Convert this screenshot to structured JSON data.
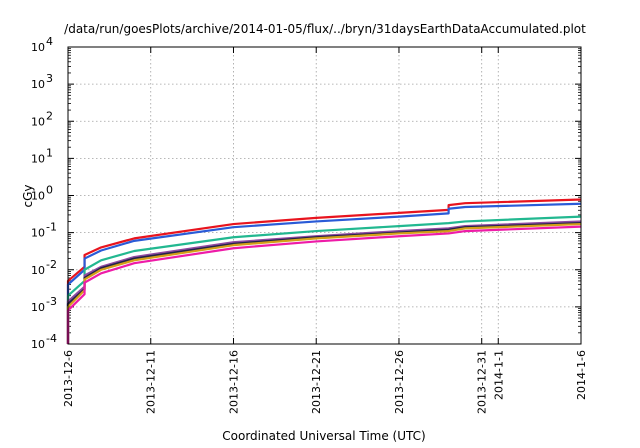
{
  "chart_data": {
    "type": "line",
    "title": "/data/run/goesPlots/archive/2014-01-05/flux/../bryn/31daysEarthDataAccumulated.plot",
    "xlabel": "Coordinated Universal Time (UTC)",
    "ylabel": "cGy",
    "y_scale": "log",
    "ylim": [
      0.0001,
      10000
    ],
    "xlim": [
      "2013-12-06",
      "2014-01-06"
    ],
    "grid": true,
    "legend": "none",
    "y_ticks": [
      {
        "base": "10",
        "exp": "-4",
        "value": 0.0001
      },
      {
        "base": "10",
        "exp": "-3",
        "value": 0.001
      },
      {
        "base": "10",
        "exp": "-2",
        "value": 0.01
      },
      {
        "base": "10",
        "exp": "-1",
        "value": 0.1
      },
      {
        "base": "10",
        "exp": "0",
        "value": 1
      },
      {
        "base": "10",
        "exp": "1",
        "value": 10
      },
      {
        "base": "10",
        "exp": "2",
        "value": 100
      },
      {
        "base": "10",
        "exp": "3",
        "value": 1000
      },
      {
        "base": "10",
        "exp": "4",
        "value": 10000
      }
    ],
    "x_ticks": [
      {
        "date": "2013-12-06",
        "label": "2013-12-6"
      },
      {
        "date": "2013-12-11",
        "label": "2013-12-11"
      },
      {
        "date": "2013-12-16",
        "label": "2013-12-16"
      },
      {
        "date": "2013-12-21",
        "label": "2013-12-21"
      },
      {
        "date": "2013-12-26",
        "label": "2013-12-26"
      },
      {
        "date": "2013-12-31",
        "label": "2013-12-31"
      },
      {
        "date": "2014-01-01",
        "label": "2014-1-1"
      },
      {
        "date": "2014-01-06",
        "label": "2014-1-6"
      }
    ],
    "series": [
      {
        "color": "#e8141e",
        "x": [
          "2013-12-06",
          "2013-12-06",
          "2013-12-06",
          "2013-12-07",
          "2013-12-07",
          "2013-12-08",
          "2013-12-10",
          "2013-12-16",
          "2013-12-21",
          "2013-12-26",
          "2013-12-29",
          "2013-12-29",
          "2013-12-30",
          "2014-01-06"
        ],
        "values": [
          0.0001,
          0.0015,
          0.005,
          0.012,
          0.025,
          0.04,
          0.07,
          0.17,
          0.25,
          0.34,
          0.41,
          0.55,
          0.62,
          0.78
        ]
      },
      {
        "color": "#2a5bd7",
        "x": [
          "2013-12-06",
          "2013-12-06",
          "2013-12-06",
          "2013-12-07",
          "2013-12-07",
          "2013-12-08",
          "2013-12-10",
          "2013-12-16",
          "2013-12-21",
          "2013-12-26",
          "2013-12-29",
          "2013-12-29",
          "2013-12-30",
          "2014-01-06"
        ],
        "values": [
          0.0001,
          0.0012,
          0.004,
          0.01,
          0.02,
          0.033,
          0.06,
          0.14,
          0.2,
          0.27,
          0.33,
          0.44,
          0.49,
          0.6
        ]
      },
      {
        "color": "#22b890",
        "x": [
          "2013-12-06",
          "2013-12-06",
          "2013-12-06",
          "2013-12-07",
          "2013-12-07",
          "2013-12-08",
          "2013-12-10",
          "2013-12-16",
          "2013-12-21",
          "2013-12-26",
          "2013-12-29",
          "2013-12-30",
          "2014-01-06"
        ],
        "values": [
          0.0001,
          0.0006,
          0.002,
          0.005,
          0.01,
          0.018,
          0.032,
          0.075,
          0.11,
          0.15,
          0.18,
          0.2,
          0.27
        ]
      },
      {
        "color": "#8e4aa0",
        "x": [
          "2013-12-06",
          "2013-12-06",
          "2013-12-06",
          "2013-12-07",
          "2013-12-07",
          "2013-12-08",
          "2013-12-10",
          "2013-12-16",
          "2013-12-21",
          "2013-12-26",
          "2013-12-29",
          "2013-12-30",
          "2014-01-06"
        ],
        "values": [
          0.0001,
          0.0004,
          0.0014,
          0.0035,
          0.007,
          0.012,
          0.022,
          0.055,
          0.08,
          0.11,
          0.13,
          0.15,
          0.2
        ]
      },
      {
        "color": "#23234a",
        "x": [
          "2013-12-06",
          "2013-12-06",
          "2013-12-06",
          "2013-12-07",
          "2013-12-07",
          "2013-12-08",
          "2013-12-10",
          "2013-12-16",
          "2013-12-21",
          "2013-12-26",
          "2013-12-29",
          "2013-12-30",
          "2014-01-06"
        ],
        "values": [
          0.0001,
          0.00035,
          0.0012,
          0.003,
          0.006,
          0.011,
          0.02,
          0.05,
          0.075,
          0.1,
          0.12,
          0.14,
          0.18
        ]
      },
      {
        "color": "#d4a017",
        "x": [
          "2013-12-06",
          "2013-12-06",
          "2013-12-06",
          "2013-12-07",
          "2013-12-07",
          "2013-12-08",
          "2013-12-10",
          "2013-12-16",
          "2013-12-21",
          "2013-12-26",
          "2013-12-29",
          "2013-12-30",
          "2014-01-06"
        ],
        "values": [
          0.0001,
          0.0003,
          0.001,
          0.0028,
          0.0055,
          0.01,
          0.018,
          0.046,
          0.07,
          0.095,
          0.11,
          0.13,
          0.17
        ]
      },
      {
        "color": "#ee1ca8",
        "x": [
          "2013-12-06",
          "2013-12-06",
          "2013-12-06",
          "2013-12-07",
          "2013-12-07",
          "2013-12-08",
          "2013-12-10",
          "2013-12-16",
          "2013-12-21",
          "2013-12-26",
          "2013-12-29",
          "2013-12-30",
          "2014-01-06"
        ],
        "values": [
          0.0001,
          0.00025,
          0.0008,
          0.0022,
          0.0045,
          0.008,
          0.015,
          0.038,
          0.058,
          0.08,
          0.095,
          0.11,
          0.145
        ]
      }
    ]
  }
}
